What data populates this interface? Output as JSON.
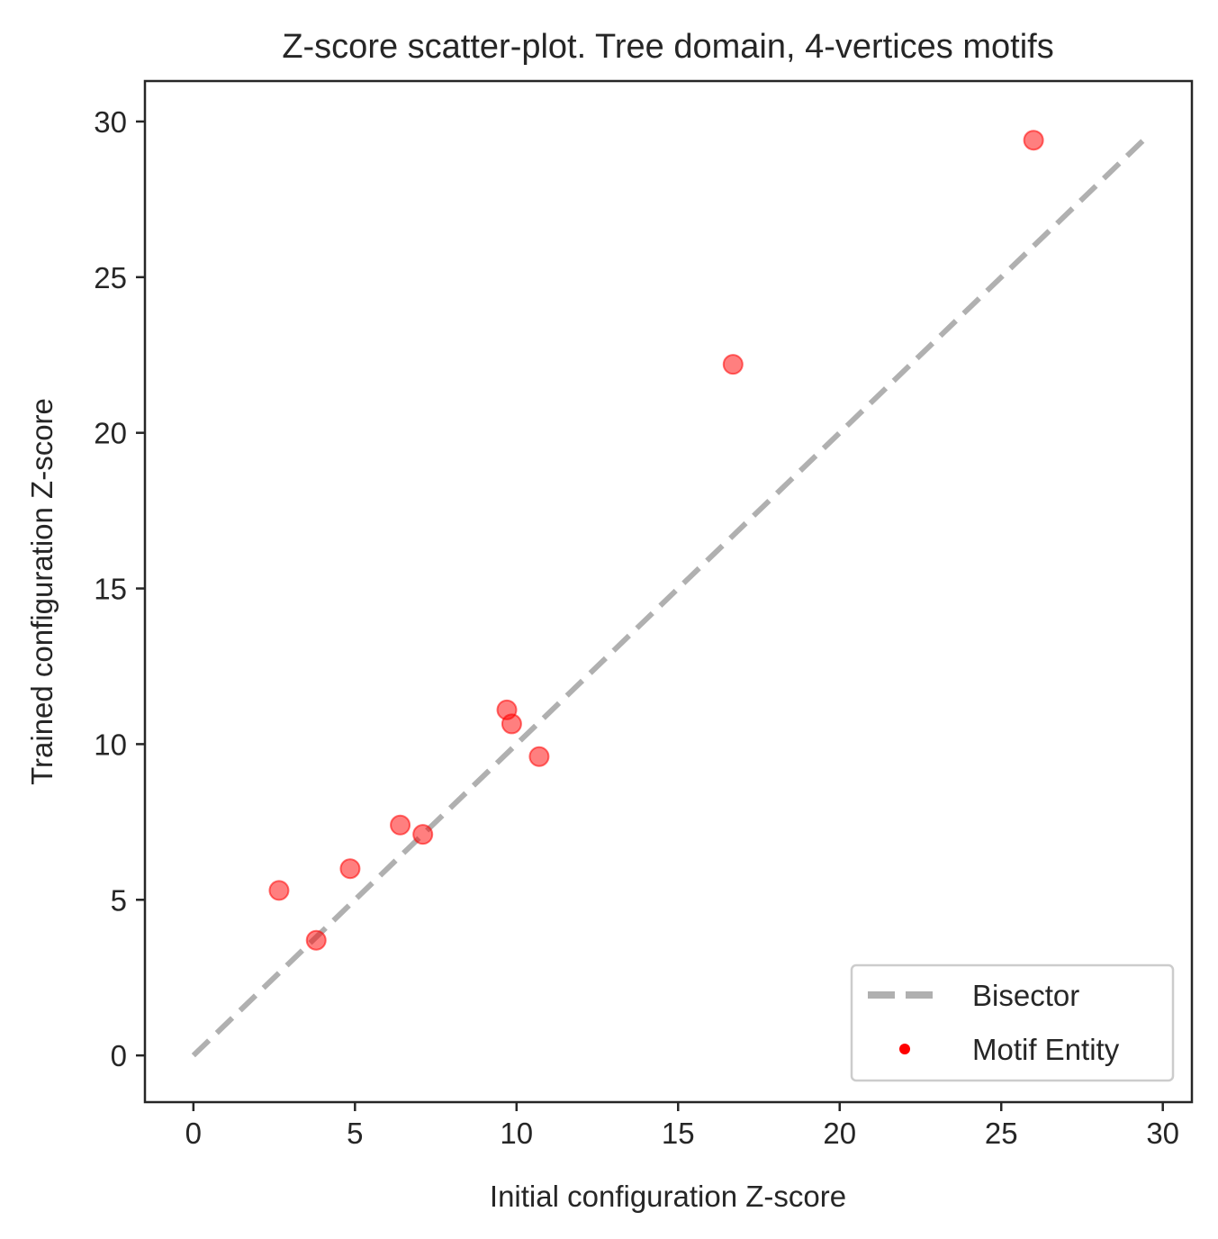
{
  "chart_data": {
    "type": "scatter",
    "title": "Z-score scatter-plot. Tree domain, 4-vertices motifs",
    "xlabel": "Initial configuration Z-score",
    "ylabel": "Trained configuration Z-score",
    "xlim": [
      -1.5,
      30.9
    ],
    "ylim": [
      -1.5,
      31.3
    ],
    "x_ticks": [
      0,
      5,
      10,
      15,
      20,
      25,
      30
    ],
    "y_ticks": [
      0,
      5,
      10,
      15,
      20,
      25,
      30
    ],
    "x_tick_labels": [
      "0",
      "5",
      "10",
      "15",
      "20",
      "25",
      "30"
    ],
    "y_tick_labels": [
      "0",
      "5",
      "10",
      "15",
      "20",
      "25",
      "30"
    ],
    "grid": false,
    "legend_position": "bottom-right",
    "series": [
      {
        "name": "Bisector",
        "kind": "line",
        "style": "dashed",
        "color": "#b0b0b0",
        "x": [
          0,
          29.4
        ],
        "y": [
          0,
          29.4
        ]
      },
      {
        "name": "Motif Entity",
        "kind": "scatter",
        "color": "#ff0000",
        "points": [
          {
            "x": 2.65,
            "y": 5.3
          },
          {
            "x": 3.8,
            "y": 3.7
          },
          {
            "x": 4.85,
            "y": 6.0
          },
          {
            "x": 6.4,
            "y": 7.4
          },
          {
            "x": 7.1,
            "y": 7.1
          },
          {
            "x": 9.7,
            "y": 11.1
          },
          {
            "x": 9.85,
            "y": 10.65
          },
          {
            "x": 10.7,
            "y": 9.6
          },
          {
            "x": 16.7,
            "y": 22.2
          },
          {
            "x": 26.0,
            "y": 29.4
          }
        ]
      }
    ]
  }
}
